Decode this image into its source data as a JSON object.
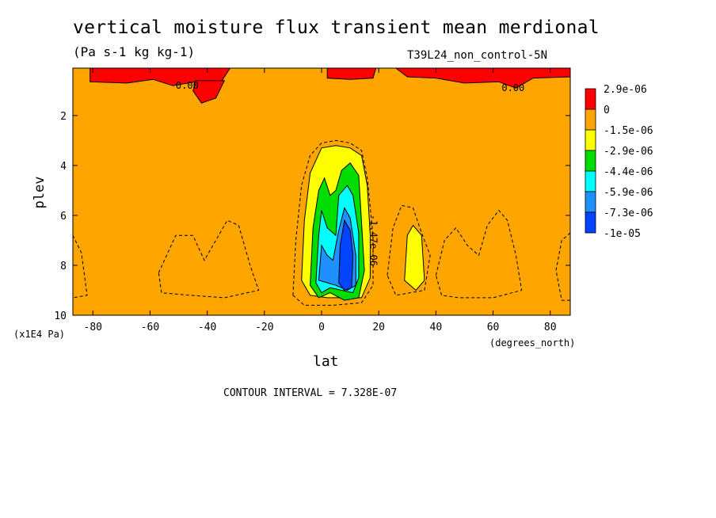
{
  "chart_data": {
    "type": "heatmap",
    "title": "vertical moisture flux transient mean merdional",
    "subtitle": "(Pa s-1 kg kg-1)",
    "dataset": "T39L24_non_control-5N",
    "xlabel": "lat",
    "x_units": "(degrees_north)",
    "ylabel": "plev",
    "y_units": "(x1E4 Pa)",
    "xlim": [
      -87,
      87
    ],
    "ylim": [
      10,
      0.1
    ],
    "x_ticks": [
      -80,
      -60,
      -40,
      -20,
      0,
      20,
      40,
      60,
      80
    ],
    "y_ticks": [
      2,
      4,
      6,
      8,
      10
    ],
    "contour_interval_text": "CONTOUR INTERVAL = 7.328E-07",
    "contour_labels": [
      {
        "text": "0.00",
        "lat": -47,
        "plev": 0.8
      },
      {
        "text": "0.00",
        "lat": 67,
        "plev": 0.9
      },
      {
        "text": "-1.47e-06",
        "lat": 17,
        "plev": 7.0
      }
    ],
    "colorbar": {
      "levels": [
        "2.9e-06",
        "0",
        "-1.5e-06",
        "-2.9e-06",
        "-4.4e-06",
        "-5.9e-06",
        "-7.3e-06",
        "-1e-05"
      ],
      "colors": [
        "#ff0000",
        "#ffa500",
        "#ffff00",
        "#00dd00",
        "#00ffff",
        "#1e90ff",
        "#0044ff"
      ]
    },
    "features": [
      {
        "kind": "positive-band",
        "color": "#ff0000",
        "desc": "upper level positive flux",
        "shapes": [
          {
            "name": "red-patch-1",
            "points": [
              [
                -81,
                0.1
              ],
              [
                -32,
                0.1
              ],
              [
                -36,
                0.8
              ],
              [
                -44,
                0.65
              ],
              [
                -52,
                0.8
              ],
              [
                -59,
                0.55
              ],
              [
                -68,
                0.7
              ],
              [
                -81,
                0.65
              ]
            ]
          },
          {
            "name": "red-patch-2",
            "points": [
              [
                -44,
                0.6
              ],
              [
                -34,
                0.6
              ],
              [
                -37,
                1.3
              ],
              [
                -42,
                1.5
              ],
              [
                -45,
                1.0
              ]
            ]
          },
          {
            "name": "red-patch-3",
            "points": [
              [
                2,
                0.1
              ],
              [
                19,
                0.1
              ],
              [
                18,
                0.5
              ],
              [
                10,
                0.55
              ],
              [
                2,
                0.5
              ]
            ]
          },
          {
            "name": "red-patch-4",
            "points": [
              [
                26,
                0.1
              ],
              [
                87,
                0.1
              ],
              [
                87,
                0.45
              ],
              [
                74,
                0.5
              ],
              [
                68,
                0.9
              ],
              [
                62,
                0.65
              ],
              [
                50,
                0.7
              ],
              [
                40,
                0.5
              ],
              [
                30,
                0.45
              ]
            ]
          }
        ]
      },
      {
        "kind": "negative-core",
        "desc": "tropical negative core centered near 8N",
        "shapes": [
          {
            "name": "yellow-region",
            "color": "#ffff00",
            "points": [
              [
                -7,
                8.6
              ],
              [
                -6,
                6.2
              ],
              [
                -4,
                4.3
              ],
              [
                0,
                3.3
              ],
              [
                5,
                3.2
              ],
              [
                10,
                3.3
              ],
              [
                14,
                3.6
              ],
              [
                16,
                4.8
              ],
              [
                17,
                6.8
              ],
              [
                17,
                8.5
              ],
              [
                14,
                9.3
              ],
              [
                8,
                9.3
              ],
              [
                2,
                9.3
              ],
              [
                -4,
                9.2
              ]
            ]
          },
          {
            "name": "yellow-secondary",
            "color": "#ffff00",
            "points": [
              [
                29,
                8.6
              ],
              [
                30,
                6.8
              ],
              [
                32,
                6.4
              ],
              [
                35,
                6.8
              ],
              [
                36,
                8.6
              ],
              [
                33,
                9.0
              ]
            ]
          },
          {
            "name": "green-region",
            "color": "#00dd00",
            "points": [
              [
                -4,
                8.8
              ],
              [
                -3,
                6.5
              ],
              [
                -1,
                5.0
              ],
              [
                1,
                4.5
              ],
              [
                3,
                5.2
              ],
              [
                5,
                5.0
              ],
              [
                7,
                4.2
              ],
              [
                10,
                3.9
              ],
              [
                13,
                4.4
              ],
              [
                14,
                6.3
              ],
              [
                15,
                8.2
              ],
              [
                13,
                9.3
              ],
              [
                8,
                9.4
              ],
              [
                3,
                9.1
              ],
              [
                -1,
                9.3
              ]
            ]
          },
          {
            "name": "cyan-region",
            "color": "#00ffff",
            "points": [
              [
                -2,
                8.7
              ],
              [
                -1,
                6.8
              ],
              [
                0,
                5.8
              ],
              [
                2,
                6.5
              ],
              [
                5,
                6.8
              ],
              [
                6,
                5.2
              ],
              [
                9,
                4.8
              ],
              [
                11,
                5.2
              ],
              [
                13,
                6.7
              ],
              [
                13,
                8.5
              ],
              [
                11,
                9.1
              ],
              [
                7,
                9.0
              ],
              [
                3,
                8.9
              ],
              [
                0,
                9.1
              ]
            ]
          },
          {
            "name": "blue-region",
            "color": "#1e90ff",
            "points": [
              [
                -1,
                8.6
              ],
              [
                0,
                7.2
              ],
              [
                2,
                7.6
              ],
              [
                4,
                7.8
              ],
              [
                6,
                6.6
              ],
              [
                8,
                5.7
              ],
              [
                10,
                6.1
              ],
              [
                12,
                7.6
              ],
              [
                12,
                8.8
              ],
              [
                9,
                9.0
              ],
              [
                5,
                8.8
              ],
              [
                2,
                8.7
              ]
            ]
          },
          {
            "name": "darkblue-core",
            "color": "#0044ff",
            "points": [
              [
                6,
                8.7
              ],
              [
                6.5,
                7.2
              ],
              [
                8,
                6.2
              ],
              [
                10,
                6.6
              ],
              [
                11,
                7.6
              ],
              [
                10.5,
                8.9
              ],
              [
                8,
                9.0
              ]
            ]
          }
        ]
      }
    ],
    "dashed_contours": [
      {
        "name": "outer-negative-contour",
        "points": [
          [
            -10,
            9.2
          ],
          [
            -9,
            7.0
          ],
          [
            -7,
            4.8
          ],
          [
            -4,
            3.6
          ],
          [
            0,
            3.1
          ],
          [
            5,
            3.0
          ],
          [
            10,
            3.1
          ],
          [
            14,
            3.4
          ],
          [
            16,
            4.5
          ],
          [
            18,
            6.8
          ],
          [
            18,
            8.8
          ],
          [
            14,
            9.5
          ],
          [
            4,
            9.6
          ],
          [
            -6,
            9.6
          ]
        ]
      },
      {
        "name": "midlat-south-contour",
        "points": [
          [
            -57,
            8.3
          ],
          [
            -51,
            6.8
          ],
          [
            -45,
            6.8
          ],
          [
            -41,
            7.8
          ],
          [
            -37,
            7.0
          ],
          [
            -33,
            6.2
          ],
          [
            -29,
            6.4
          ],
          [
            -25,
            8.0
          ],
          [
            -22,
            9.0
          ],
          [
            -34,
            9.3
          ],
          [
            -46,
            9.2
          ],
          [
            -56,
            9.1
          ]
        ]
      },
      {
        "name": "south-pole-contour",
        "points": [
          [
            -87,
            6.8
          ],
          [
            -84,
            7.5
          ],
          [
            -82,
            9.2
          ],
          [
            -87,
            9.3
          ]
        ]
      },
      {
        "name": "north-30-contour",
        "points": [
          [
            23,
            8.4
          ],
          [
            25,
            6.5
          ],
          [
            28,
            5.6
          ],
          [
            32,
            5.7
          ],
          [
            35,
            6.7
          ],
          [
            38,
            7.6
          ],
          [
            36,
            9.0
          ],
          [
            26,
            9.2
          ]
        ]
      },
      {
        "name": "north-midlat-contour",
        "points": [
          [
            40,
            8.4
          ],
          [
            43,
            7.0
          ],
          [
            47,
            6.5
          ],
          [
            51,
            7.2
          ],
          [
            55,
            7.6
          ],
          [
            58,
            6.4
          ],
          [
            62,
            5.8
          ],
          [
            65,
            6.2
          ],
          [
            68,
            7.6
          ],
          [
            70,
            9.0
          ],
          [
            60,
            9.3
          ],
          [
            48,
            9.3
          ],
          [
            42,
            9.2
          ]
        ]
      },
      {
        "name": "north-pole-contour",
        "points": [
          [
            87,
            6.7
          ],
          [
            84,
            7.0
          ],
          [
            82,
            8.2
          ],
          [
            84,
            9.4
          ],
          [
            87,
            9.4
          ]
        ]
      }
    ]
  }
}
